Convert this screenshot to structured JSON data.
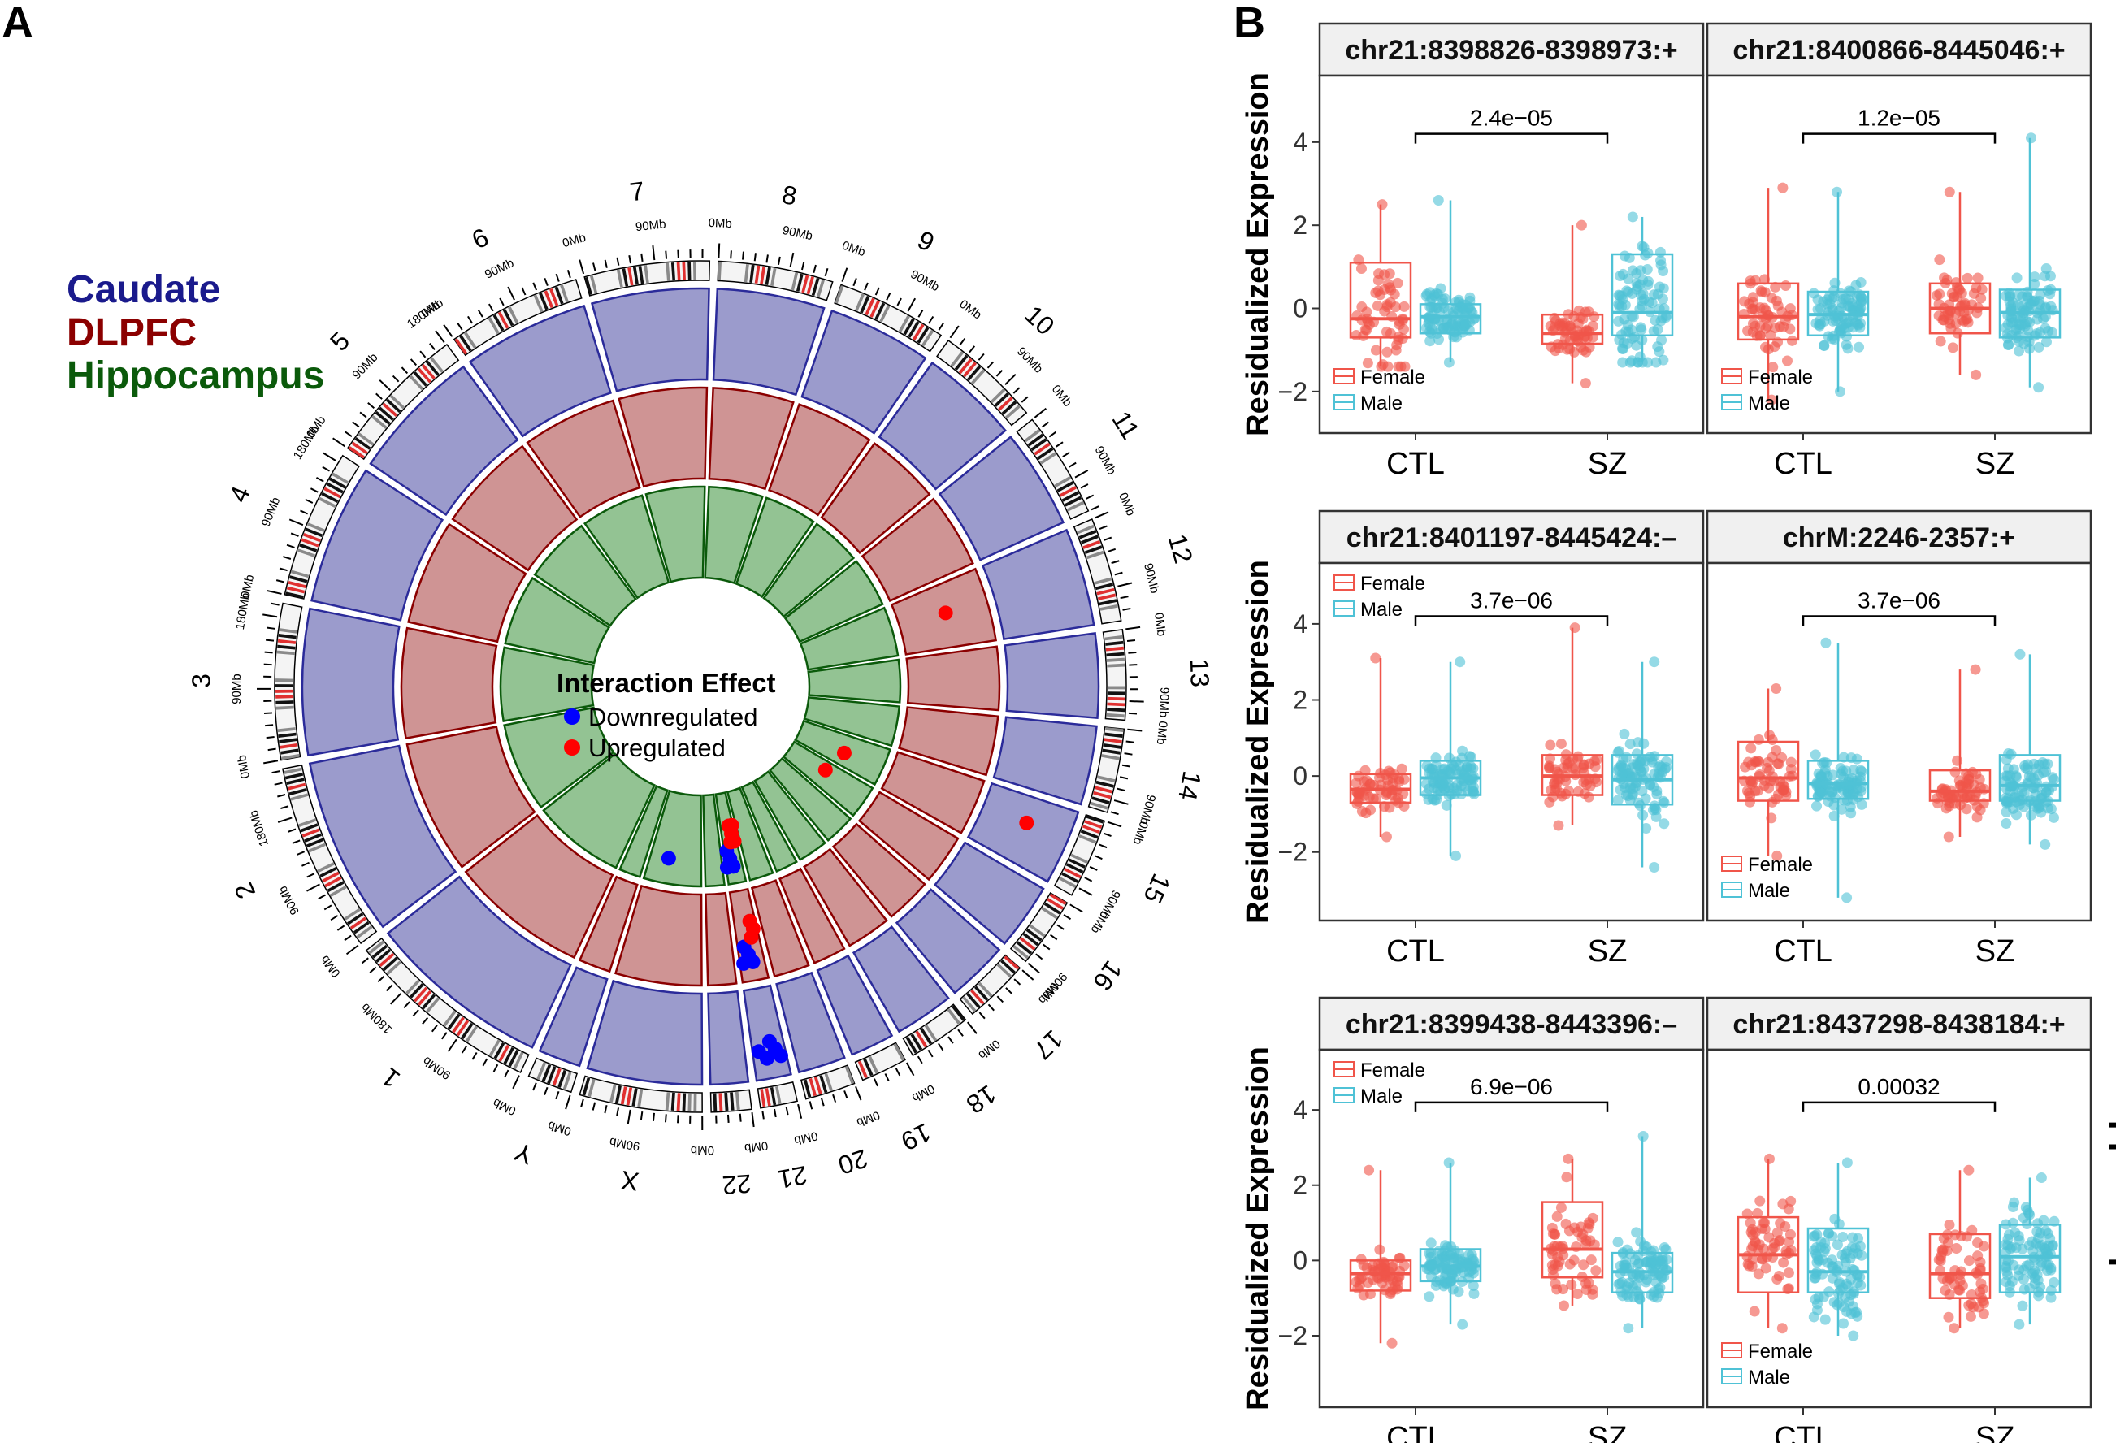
{
  "panels": {
    "a": "A",
    "b": "B"
  },
  "colors": {
    "caudate": "#1a1a8c",
    "dlpfc": "#8b0000",
    "hippocampus": "#0b5a0b",
    "caudate_fill": "#9b9bcc",
    "dlpfc_fill": "#cf9494",
    "hippocampus_fill": "#93c393",
    "down": "#0000ff",
    "up": "#ff0000",
    "female": "#f0554a",
    "male": "#4fc2d6"
  },
  "circos": {
    "region_legend": [
      "Caudate",
      "DLPFC",
      "Hippocampus"
    ],
    "legend_title": "Interaction Effect",
    "legend_items": [
      {
        "label": "Downregulated",
        "color": "#0000ff"
      },
      {
        "label": "Upregulated",
        "color": "#ff0000"
      }
    ],
    "chromosomes": [
      "1",
      "2",
      "3",
      "4",
      "5",
      "6",
      "7",
      "8",
      "9",
      "10",
      "11",
      "12",
      "13",
      "14",
      "15",
      "16",
      "17",
      "18",
      "19",
      "20",
      "21",
      "22",
      "X",
      "Y"
    ],
    "chromosome_lengths_mb": [
      249,
      242,
      198,
      190,
      181,
      171,
      159,
      146,
      141,
      134,
      135,
      133,
      114,
      107,
      102,
      90,
      83,
      80,
      59,
      64,
      47,
      51,
      156,
      57
    ],
    "tick_labels": [
      "0Mb",
      "90Mb",
      "180Mb"
    ],
    "points": {
      "caudate": {
        "up": [
          {
            "chr": "15",
            "pos_mb": 40
          }
        ],
        "down": [
          {
            "chr": "21",
            "pos_mb": 8
          },
          {
            "chr": "21",
            "pos_mb": 14
          },
          {
            "chr": "21",
            "pos_mb": 20
          },
          {
            "chr": "21",
            "pos_mb": 28
          },
          {
            "chr": "21",
            "pos_mb": 38
          }
        ]
      },
      "dlpfc": {
        "up": [
          {
            "chr": "12",
            "pos_mb": 60
          },
          {
            "chr": "21",
            "pos_mb": 8
          },
          {
            "chr": "21",
            "pos_mb": 12
          },
          {
            "chr": "21",
            "pos_mb": 16
          }
        ],
        "down": [
          {
            "chr": "21",
            "pos_mb": 22
          },
          {
            "chr": "21",
            "pos_mb": 28
          },
          {
            "chr": "21",
            "pos_mb": 34
          },
          {
            "chr": "21",
            "pos_mb": 40
          }
        ]
      },
      "hippocampus": {
        "up": [
          {
            "chr": "15",
            "pos_mb": 60
          },
          {
            "chr": "16",
            "pos_mb": 30
          },
          {
            "chr": "21",
            "pos_mb": 4
          },
          {
            "chr": "21",
            "pos_mb": 8
          },
          {
            "chr": "21",
            "pos_mb": 12
          },
          {
            "chr": "21",
            "pos_mb": 16
          },
          {
            "chr": "21",
            "pos_mb": 20
          }
        ],
        "down": [
          {
            "chr": "21",
            "pos_mb": 26
          },
          {
            "chr": "21",
            "pos_mb": 32
          },
          {
            "chr": "21",
            "pos_mb": 38
          },
          {
            "chr": "21",
            "pos_mb": 44
          },
          {
            "chr": "X",
            "pos_mb": 100
          }
        ]
      }
    }
  },
  "chart_data": [
    {
      "type": "box",
      "region": "Caudate",
      "title": "chr21:8398826-8398973:+",
      "categories": [
        "CTL",
        "SZ"
      ],
      "ylabel": "Residualized Expression",
      "ylim": [
        -3,
        5.6
      ],
      "yticks": [
        -2,
        0,
        2,
        4
      ],
      "pvalue": "2.4e−05",
      "legend": [
        "Female",
        "Male"
      ],
      "legend_pos": "bottom-left",
      "series": [
        {
          "name": "Female",
          "boxes": [
            {
              "q1": -0.7,
              "median": -0.25,
              "q3": 1.1,
              "lo": -1.4,
              "hi": 2.5
            },
            {
              "q1": -0.85,
              "median": -0.6,
              "q3": -0.15,
              "lo": -1.8,
              "hi": 2.0
            }
          ]
        },
        {
          "name": "Male",
          "boxes": [
            {
              "q1": -0.6,
              "median": -0.2,
              "q3": 0.1,
              "lo": -1.3,
              "hi": 2.6
            },
            {
              "q1": -0.65,
              "median": -0.1,
              "q3": 1.3,
              "lo": -1.3,
              "hi": 2.2
            }
          ]
        }
      ]
    },
    {
      "type": "box",
      "region": "Caudate",
      "title": "chr21:8400866-8445046:+",
      "categories": [
        "CTL",
        "SZ"
      ],
      "ylabel": "",
      "ylim": [
        -3,
        5.6
      ],
      "yticks": [
        -2,
        0,
        2,
        4
      ],
      "pvalue": "1.2e−05",
      "legend": [
        "Female",
        "Male"
      ],
      "legend_pos": "bottom-left",
      "series": [
        {
          "name": "Female",
          "boxes": [
            {
              "q1": -0.75,
              "median": -0.2,
              "q3": 0.6,
              "lo": -2.2,
              "hi": 2.9
            },
            {
              "q1": -0.6,
              "median": 0.0,
              "q3": 0.6,
              "lo": -1.6,
              "hi": 2.8
            }
          ]
        },
        {
          "name": "Male",
          "boxes": [
            {
              "q1": -0.65,
              "median": -0.15,
              "q3": 0.4,
              "lo": -2.0,
              "hi": 2.8
            },
            {
              "q1": -0.7,
              "median": -0.1,
              "q3": 0.45,
              "lo": -1.9,
              "hi": 4.1
            }
          ]
        }
      ]
    },
    {
      "type": "box",
      "region": "DLPFC",
      "title": "chr21:8401197-8445424:–",
      "categories": [
        "CTL",
        "SZ"
      ],
      "ylabel": "Residualized Expression",
      "ylim": [
        -3.8,
        5.6
      ],
      "yticks": [
        -2,
        0,
        2,
        4
      ],
      "pvalue": "3.7e−06",
      "legend": [
        "Female",
        "Male"
      ],
      "legend_pos": "top-left",
      "series": [
        {
          "name": "Female",
          "boxes": [
            {
              "q1": -0.7,
              "median": -0.35,
              "q3": 0.05,
              "lo": -1.6,
              "hi": 3.1
            },
            {
              "q1": -0.5,
              "median": 0.0,
              "q3": 0.55,
              "lo": -1.3,
              "hi": 3.9
            }
          ]
        },
        {
          "name": "Male",
          "boxes": [
            {
              "q1": -0.5,
              "median": -0.05,
              "q3": 0.4,
              "lo": -2.1,
              "hi": 3.0
            },
            {
              "q1": -0.75,
              "median": -0.1,
              "q3": 0.55,
              "lo": -2.4,
              "hi": 3.0
            }
          ]
        }
      ]
    },
    {
      "type": "box",
      "region": "DLPFC",
      "title": "chrM:2246-2357:+",
      "categories": [
        "CTL",
        "SZ"
      ],
      "ylabel": "",
      "ylim": [
        -3.8,
        5.6
      ],
      "yticks": [
        -2,
        0,
        2,
        4
      ],
      "pvalue": "3.7e−06",
      "legend": [
        "Female",
        "Male"
      ],
      "legend_pos": "bottom-left",
      "series": [
        {
          "name": "Female",
          "boxes": [
            {
              "q1": -0.65,
              "median": -0.05,
              "q3": 0.9,
              "lo": -2.1,
              "hi": 2.3
            },
            {
              "q1": -0.65,
              "median": -0.4,
              "q3": 0.15,
              "lo": -1.6,
              "hi": 2.8
            }
          ]
        },
        {
          "name": "Male",
          "boxes": [
            {
              "q1": -0.6,
              "median": -0.2,
              "q3": 0.4,
              "lo": -3.2,
              "hi": 3.5
            },
            {
              "q1": -0.65,
              "median": -0.25,
              "q3": 0.55,
              "lo": -1.8,
              "hi": 3.2
            }
          ]
        }
      ]
    },
    {
      "type": "box",
      "region": "Hippocampus",
      "title": "chr21:8399438-8443396:–",
      "categories": [
        "CTL",
        "SZ"
      ],
      "ylabel": "Residualized Expression",
      "ylim": [
        -3.9,
        5.6
      ],
      "yticks": [
        -2,
        0,
        2,
        4
      ],
      "pvalue": "6.9e−06",
      "legend": [
        "Female",
        "Male"
      ],
      "legend_pos": "top-left",
      "series": [
        {
          "name": "Female",
          "boxes": [
            {
              "q1": -0.8,
              "median": -0.35,
              "q3": 0.0,
              "lo": -2.2,
              "hi": 2.4
            },
            {
              "q1": -0.45,
              "median": 0.3,
              "q3": 1.55,
              "lo": -1.2,
              "hi": 2.7
            }
          ]
        },
        {
          "name": "Male",
          "boxes": [
            {
              "q1": -0.55,
              "median": -0.15,
              "q3": 0.3,
              "lo": -1.7,
              "hi": 2.6
            },
            {
              "q1": -0.85,
              "median": -0.3,
              "q3": 0.2,
              "lo": -1.8,
              "hi": 3.3
            }
          ]
        }
      ]
    },
    {
      "type": "box",
      "region": "Hippocampus",
      "title": "chr21:8437298-8438184:+",
      "categories": [
        "CTL",
        "SZ"
      ],
      "ylabel": "",
      "ylim": [
        -3.9,
        5.6
      ],
      "yticks": [
        -2,
        0,
        2,
        4
      ],
      "pvalue": "0.00032",
      "legend": [
        "Female",
        "Male"
      ],
      "legend_pos": "bottom-left",
      "series": [
        {
          "name": "Female",
          "boxes": [
            {
              "q1": -0.85,
              "median": 0.15,
              "q3": 1.15,
              "lo": -1.8,
              "hi": 2.7
            },
            {
              "q1": -1.0,
              "median": -0.35,
              "q3": 0.7,
              "lo": -1.8,
              "hi": 2.4
            }
          ]
        },
        {
          "name": "Male",
          "boxes": [
            {
              "q1": -0.85,
              "median": -0.3,
              "q3": 0.85,
              "lo": -2.0,
              "hi": 2.6
            },
            {
              "q1": -0.85,
              "median": 0.1,
              "q3": 0.95,
              "lo": -1.7,
              "hi": 2.2
            }
          ]
        }
      ]
    }
  ]
}
